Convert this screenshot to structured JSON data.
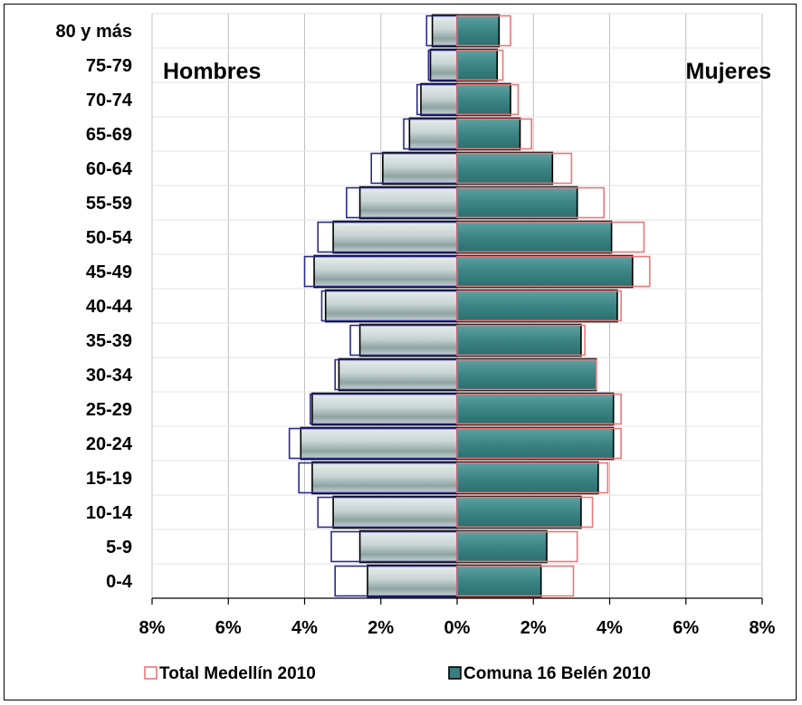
{
  "chart_data": {
    "type": "bar",
    "orientation": "horizontal-population-pyramid",
    "categories": [
      "0-4",
      "5-9",
      "10-14",
      "15-19",
      "20-24",
      "25-29",
      "30-34",
      "35-39",
      "40-44",
      "45-49",
      "50-54",
      "55-59",
      "60-64",
      "65-69",
      "70-74",
      "75-79",
      "80 y más"
    ],
    "left_label": "Hombres",
    "right_label": "Mujeres",
    "x_ticks": [
      "8%",
      "6%",
      "4%",
      "2%",
      "0%",
      "2%",
      "4%",
      "6%",
      "8%"
    ],
    "xlim": [
      -8,
      8
    ],
    "grid": true,
    "legend_position": "bottom",
    "series": [
      {
        "name": "Comuna 16 Belén 2010",
        "style": "filled",
        "color_female": "#3a7f7f",
        "color_male": "#b9c8c8",
        "men": [
          2.35,
          2.55,
          3.25,
          3.8,
          4.1,
          3.8,
          3.1,
          2.55,
          3.45,
          3.75,
          3.25,
          2.55,
          1.95,
          1.25,
          0.95,
          0.7,
          0.65
        ],
        "women": [
          2.2,
          2.35,
          3.25,
          3.7,
          4.1,
          4.1,
          3.65,
          3.25,
          4.2,
          4.6,
          4.05,
          3.15,
          2.5,
          1.65,
          1.4,
          1.05,
          1.1
        ]
      },
      {
        "name": "Total Medellín 2010",
        "style": "outline",
        "color_female": "#e9787a",
        "color_male": "#2a2a8a",
        "men": [
          3.2,
          3.3,
          3.65,
          4.15,
          4.4,
          3.85,
          3.2,
          2.8,
          3.55,
          4.0,
          3.65,
          2.9,
          2.25,
          1.4,
          1.05,
          0.75,
          0.8
        ],
        "women": [
          3.05,
          3.15,
          3.55,
          3.95,
          4.3,
          4.3,
          3.65,
          3.35,
          4.3,
          5.05,
          4.9,
          3.85,
          3.0,
          1.95,
          1.6,
          1.2,
          1.4
        ]
      }
    ]
  }
}
